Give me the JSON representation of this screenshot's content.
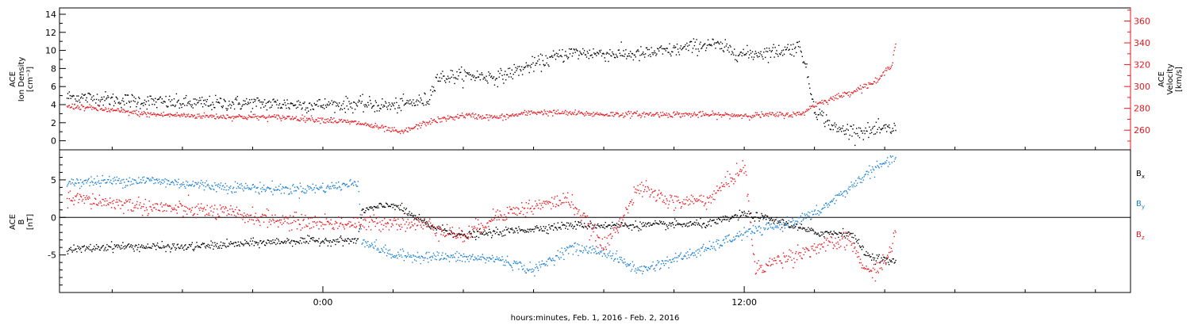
{
  "chart_data": [
    {
      "type": "scatter",
      "panel": "top",
      "ylabel_lines": [
        "ACE",
        "Ion Density",
        "[cm⁻³]"
      ],
      "ylim": [
        -1,
        14.7
      ],
      "yticks": [
        0,
        2,
        4,
        6,
        8,
        10,
        12,
        14
      ],
      "y2label_lines": [
        "ACE",
        "Velocity",
        "[km/s]"
      ],
      "y2lim": [
        242,
        372
      ],
      "y2ticks": [
        260,
        280,
        300,
        320,
        340,
        360
      ],
      "series": [
        {
          "key": "density",
          "axis": "left",
          "color": "#000000",
          "knots": [
            [
              -7.0,
              4.9
            ],
            [
              -6.0,
              4.6
            ],
            [
              -4.0,
              4.2
            ],
            [
              -2.0,
              4.2
            ],
            [
              0,
              4.0
            ],
            [
              1.0,
              4.1
            ],
            [
              2.0,
              3.9
            ],
            [
              3.0,
              4.6
            ],
            [
              3.2,
              7.0
            ],
            [
              4.0,
              7.3
            ],
            [
              5.0,
              7.1
            ],
            [
              6.0,
              8.5
            ],
            [
              7.0,
              9.8
            ],
            [
              9.0,
              9.6
            ],
            [
              10.0,
              10.1
            ],
            [
              11.0,
              10.8
            ],
            [
              12.0,
              9.6
            ],
            [
              13.0,
              10.0
            ],
            [
              13.6,
              10.5
            ],
            [
              14.0,
              3.5
            ],
            [
              14.6,
              1.3
            ],
            [
              15.5,
              1.1
            ],
            [
              16.3,
              1.4
            ]
          ],
          "noise": 0.9
        },
        {
          "key": "velocity",
          "axis": "right",
          "color": "#e8171e",
          "knots": [
            [
              -7.0,
              282
            ],
            [
              -5.0,
              275
            ],
            [
              -3.0,
              273
            ],
            [
              -1.0,
              272
            ],
            [
              0,
              270
            ],
            [
              1.0,
              267
            ],
            [
              2.0,
              260
            ],
            [
              2.2,
              258
            ],
            [
              3.0,
              268
            ],
            [
              4.0,
              274
            ],
            [
              5.0,
              272
            ],
            [
              6.0,
              277
            ],
            [
              8.0,
              275
            ],
            [
              10.0,
              275
            ],
            [
              12.0,
              274
            ],
            [
              13.6,
              275
            ],
            [
              14.0,
              284
            ],
            [
              15.0,
              295
            ],
            [
              15.8,
              306
            ],
            [
              16.2,
              322
            ],
            [
              16.3,
              340
            ]
          ],
          "noise": 3
        }
      ]
    },
    {
      "type": "scatter",
      "panel": "bottom",
      "ylabel_lines": [
        "ACE",
        "B",
        "[nT]"
      ],
      "ylim": [
        -10,
        9
      ],
      "yticks": [
        -5,
        0,
        5
      ],
      "zero_line": true,
      "xlim": [
        -7.5,
        23.0
      ],
      "xtick_hours": [
        0,
        12
      ],
      "xtick_labels": [
        "0:00",
        "12:00"
      ],
      "xlabel": "hours:minutes, Feb.  1, 2016 - Feb.  2, 2016",
      "legend": [
        "B_x",
        "B_y",
        "B_z"
      ],
      "series": [
        {
          "key": "bx",
          "color": "#000000",
          "knots": [
            [
              -7.0,
              -4.2
            ],
            [
              -6.0,
              -3.8
            ],
            [
              -4.0,
              -3.9
            ],
            [
              -1.0,
              -3.1
            ],
            [
              1.0,
              -3.0
            ],
            [
              1.1,
              1.0
            ],
            [
              2.0,
              1.8
            ],
            [
              3.0,
              -1.0
            ],
            [
              4.0,
              -2.4
            ],
            [
              5.0,
              -1.9
            ],
            [
              7.0,
              -1.0
            ],
            [
              9.0,
              -1.0
            ],
            [
              11.0,
              -0.8
            ],
            [
              12.0,
              0.5
            ],
            [
              13.0,
              -0.5
            ],
            [
              14.0,
              -2.0
            ],
            [
              15.0,
              -2.0
            ],
            [
              15.5,
              -5.0
            ],
            [
              16.3,
              -6.0
            ]
          ],
          "noise": 0.6
        },
        {
          "key": "by",
          "color": "#1b7fd4",
          "knots": [
            [
              -7.0,
              4.8
            ],
            [
              -5.0,
              5.0
            ],
            [
              -3.0,
              4.2
            ],
            [
              -1.0,
              3.8
            ],
            [
              0,
              4.0
            ],
            [
              1.0,
              4.6
            ],
            [
              1.1,
              -3.0
            ],
            [
              2.0,
              -5.0
            ],
            [
              4.0,
              -5.3
            ],
            [
              5.0,
              -5.5
            ],
            [
              6.0,
              -7.0
            ],
            [
              7.0,
              -4.0
            ],
            [
              8.0,
              -4.5
            ],
            [
              9.0,
              -7.0
            ],
            [
              11.0,
              -4.0
            ],
            [
              12.0,
              -2.0
            ],
            [
              13.0,
              -1.0
            ],
            [
              14.0,
              0.5
            ],
            [
              15.0,
              4.0
            ],
            [
              15.5,
              6.0
            ],
            [
              16.3,
              8.0
            ]
          ],
          "noise": 0.8
        },
        {
          "key": "bz",
          "color": "#e8171e",
          "knots": [
            [
              -7.0,
              2.5
            ],
            [
              -5.0,
              1.5
            ],
            [
              -3.0,
              0.8
            ],
            [
              -1.0,
              -0.5
            ],
            [
              1.0,
              -0.8
            ],
            [
              2.0,
              -0.5
            ],
            [
              3.0,
              -1.0
            ],
            [
              4.0,
              -2.5
            ],
            [
              5.0,
              0.5
            ],
            [
              6.0,
              1.5
            ],
            [
              7.0,
              2.5
            ],
            [
              8.0,
              -4.0
            ],
            [
              9.0,
              4.0
            ],
            [
              10.0,
              2.0
            ],
            [
              11.0,
              2.5
            ],
            [
              12.0,
              7.0
            ],
            [
              12.3,
              -7.0
            ],
            [
              13.0,
              -5.5
            ],
            [
              14.0,
              -4.0
            ],
            [
              15.0,
              -3.0
            ],
            [
              15.5,
              -7.5
            ],
            [
              16.0,
              -6.0
            ],
            [
              16.3,
              -2.0
            ]
          ],
          "noise": 1.2
        }
      ]
    }
  ],
  "x_data_range_hours": [
    -7.3,
    16.3
  ]
}
